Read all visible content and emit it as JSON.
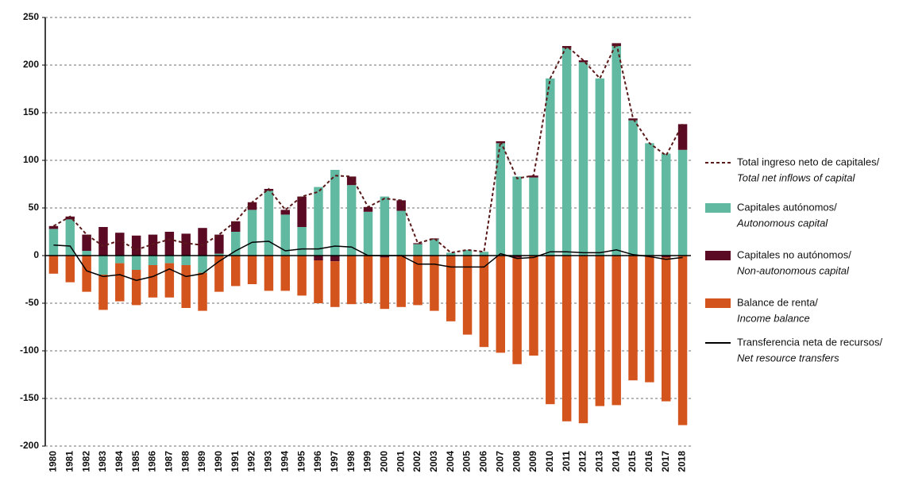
{
  "chart_data": {
    "type": "bar",
    "categories": [
      "1980",
      "1981",
      "1982",
      "1983",
      "1984",
      "1985",
      "1986",
      "1987",
      "1988",
      "1989",
      "1990",
      "1991",
      "1992",
      "1993",
      "1994",
      "1995",
      "1996",
      "1997",
      "1998",
      "1999",
      "2000",
      "2001",
      "2002",
      "2003",
      "2004",
      "2005",
      "2006",
      "2007",
      "2008",
      "2009",
      "2010",
      "2011",
      "2012",
      "2013",
      "2014",
      "2015",
      "2016",
      "2017",
      "2018"
    ],
    "ylim": [
      -200,
      250
    ],
    "yticks": [
      -200,
      -150,
      -100,
      -50,
      0,
      50,
      100,
      150,
      200,
      250
    ],
    "grid": true,
    "series": [
      {
        "name": "Total ingreso neto de capitales/",
        "name_en": "Total net inflows of capital",
        "kind": "line",
        "dashed": true,
        "color": "#5a1a1a",
        "values": [
          31,
          41,
          22,
          10,
          16,
          6,
          12,
          17,
          13,
          11,
          22,
          36,
          56,
          70,
          48,
          62,
          67,
          84,
          83,
          51,
          60,
          58,
          13,
          18,
          3,
          6,
          4,
          120,
          81,
          84,
          186,
          220,
          205,
          186,
          223,
          144,
          118,
          105,
          138
        ]
      },
      {
        "name": "Capitales autónomos/",
        "name_en": "Autonomous capital",
        "kind": "bar",
        "color": "#62b9a2",
        "values": [
          28,
          38,
          5,
          -20,
          -8,
          -15,
          -10,
          -8,
          -10,
          -18,
          2,
          25,
          48,
          68,
          43,
          30,
          72,
          90,
          74,
          46,
          62,
          47,
          12,
          17,
          3,
          6,
          4,
          118,
          83,
          82,
          186,
          218,
          203,
          186,
          220,
          142,
          118,
          107,
          111
        ]
      },
      {
        "name": "Capitales no autónomos/",
        "name_en": "Non-autonomous capital",
        "kind": "bar",
        "color": "#5a0a22",
        "values": [
          3,
          3,
          17,
          30,
          24,
          21,
          22,
          25,
          23,
          29,
          20,
          11,
          8,
          2,
          5,
          32,
          -5,
          -6,
          9,
          5,
          -2,
          11,
          1,
          1,
          0,
          0,
          0,
          2,
          -2,
          2,
          0,
          2,
          2,
          0,
          3,
          2,
          0,
          -2,
          27
        ]
      },
      {
        "name": "Balance de renta/",
        "name_en": "Income balance",
        "kind": "bar",
        "color": "#d4541d",
        "values": [
          -19,
          -28,
          -38,
          -37,
          -40,
          -37,
          -34,
          -36,
          -45,
          -40,
          -38,
          -32,
          -30,
          -37,
          -37,
          -42,
          -45,
          -48,
          -51,
          -50,
          -54,
          -54,
          -52,
          -58,
          -69,
          -83,
          -96,
          -102,
          -112,
          -105,
          -156,
          -174,
          -176,
          -158,
          -157,
          -131,
          -133,
          -151,
          -178
        ]
      },
      {
        "name": "Transferencia neta de recursos/",
        "name_en": "Net resource transfers",
        "kind": "line",
        "dashed": false,
        "color": "#000000",
        "values": [
          11,
          10,
          -16,
          -22,
          -20,
          -26,
          -22,
          -14,
          -22,
          -19,
          -6,
          5,
          14,
          15,
          5,
          7,
          7,
          10,
          9,
          0,
          0,
          0,
          -9,
          -9,
          -12,
          -12,
          -12,
          2,
          -3,
          -2,
          4,
          4,
          3,
          3,
          6,
          1,
          -1,
          -4,
          -2
        ]
      }
    ]
  }
}
